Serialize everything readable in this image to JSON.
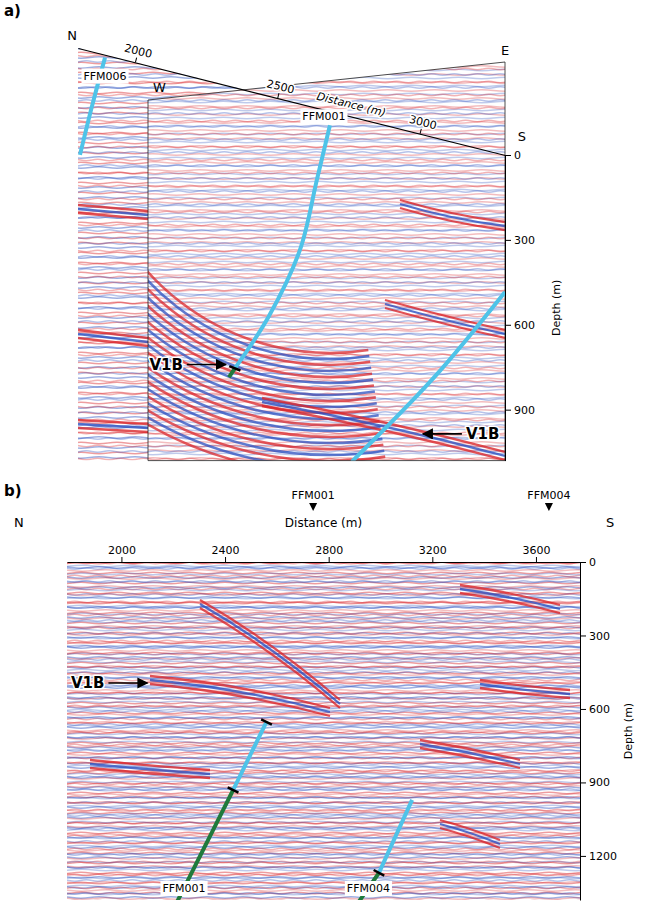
{
  "chart_data": [
    {
      "type": "seismic_fence_diagram",
      "panel_label": "a)",
      "x_label": "Distance (m)",
      "y_label": "Depth (m)",
      "direction_labels": [
        "N",
        "E",
        "W",
        "S"
      ],
      "xlim": [
        1800,
        3300
      ],
      "xticks": [
        2000,
        2500,
        3000
      ],
      "ylim": [
        0,
        1080
      ],
      "yticks": [
        0,
        300,
        600,
        900
      ],
      "boreholes": [
        {
          "name": "FFM006",
          "segments": [
            {
              "color": "#4fc3e8",
              "x": [
                1895,
                1850,
                1807
              ],
              "y": [
                10,
                190,
                376
              ]
            }
          ]
        },
        {
          "name": "FFM001",
          "segments": [
            {
              "color": "#4fc3e8",
              "x": [
                2685,
                2640,
                2580,
                2470,
                2351
              ],
              "y": [
                50,
                250,
                516,
                780,
                993
              ]
            },
            {
              "color": "#1f7a3c",
              "x": [
                2351,
                2330
              ],
              "y": [
                993,
                1030
              ]
            }
          ],
          "markers": {
            "x": [
              2351
            ],
            "y": [
              993
            ]
          }
        },
        {
          "segments": [
            {
              "color": "#4fc3e8",
              "x": [
                3300,
                3050,
                2762
              ],
              "y": [
                484,
                850,
                1219
              ]
            }
          ]
        }
      ],
      "annotations": [
        {
          "text": "V1B",
          "x": 2330,
          "y": 985
        },
        {
          "text": "V1B",
          "x": 3001,
          "y": 1061
        }
      ]
    },
    {
      "type": "seismic_section",
      "panel_label": "b)",
      "x_label": "Distance (m)",
      "y_label": "Depth (m)",
      "direction_labels": [
        "N",
        "S"
      ],
      "xlim": [
        1790,
        3770
      ],
      "xticks": [
        2000,
        2400,
        2800,
        3200,
        3600
      ],
      "ylim": [
        0,
        1380
      ],
      "yticks": [
        0,
        300,
        600,
        900,
        1200
      ],
      "well_markers": [
        {
          "name": "FFM001",
          "x": 2740
        },
        {
          "name": "FFM004",
          "x": 3650
        }
      ],
      "boreholes": [
        {
          "name": "FFM001",
          "segments": [
            {
              "color": "#4fc3e8",
              "x": [
                2560,
                2431
              ],
              "y": [
                653,
                931
              ]
            },
            {
              "color": "#1f7a3c",
              "x": [
                2431,
                2209
              ],
              "y": [
                931,
                1400
              ]
            }
          ],
          "markers": {
            "x": [
              2560,
              2431
            ],
            "y": [
              653,
              931
            ]
          }
        },
        {
          "name": "FFM004",
          "segments": [
            {
              "color": "#4fc3e8",
              "x": [
                3122,
                2994
              ],
              "y": [
                971,
                1269
              ]
            },
            {
              "color": "#1f7a3c",
              "x": [
                2994,
                2908
              ],
              "y": [
                1269,
                1400
              ]
            }
          ],
          "markers": {
            "x": [
              2994
            ],
            "y": [
              1269
            ]
          }
        }
      ],
      "annotations": [
        {
          "text": "V1B",
          "x": 2112,
          "y": 494
        }
      ]
    }
  ]
}
